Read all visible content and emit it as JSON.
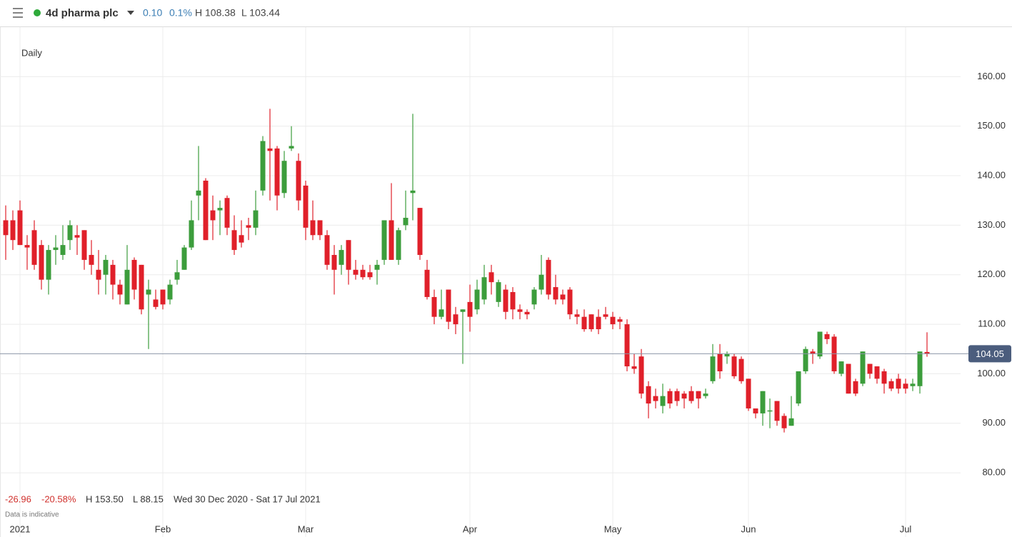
{
  "header": {
    "title": "4d pharma plc",
    "change": "0.10",
    "change_pct": "0.1%",
    "high": "H 108.38",
    "low": "L 103.44"
  },
  "footer": {
    "change": "-26.96",
    "change_pct": "-20.58%",
    "high": "H 153.50",
    "low": "L 88.15",
    "range": "Wed 30 Dec 2020 - Sat 17 Jul 2021",
    "note": "Data is indicative"
  },
  "chart_data": {
    "type": "candlestick",
    "interval": "Daily",
    "categories": [
      null,
      null,
      "2021",
      null,
      null,
      null,
      null,
      null,
      null,
      null,
      null,
      null,
      null,
      null,
      null,
      null,
      null,
      null,
      null,
      null,
      null,
      null,
      "Feb",
      null,
      null,
      null,
      null,
      null,
      null,
      null,
      null,
      null,
      null,
      null,
      null,
      null,
      null,
      null,
      null,
      null,
      null,
      null,
      "Mar",
      null,
      null,
      null,
      null,
      null,
      null,
      null,
      null,
      null,
      null,
      null,
      null,
      null,
      null,
      null,
      null,
      null,
      null,
      null,
      null,
      null,
      null,
      "Apr",
      null,
      null,
      null,
      null,
      null,
      null,
      null,
      null,
      null,
      null,
      null,
      null,
      null,
      null,
      null,
      null,
      null,
      null,
      null,
      "May",
      null,
      null,
      null,
      null,
      null,
      null,
      null,
      null,
      null,
      null,
      null,
      null,
      null,
      null,
      null,
      null,
      null,
      null,
      "Jun",
      null,
      null,
      null,
      null,
      null,
      null,
      null,
      null,
      null,
      null,
      null,
      null,
      null,
      null,
      null,
      null,
      null,
      null,
      null,
      null,
      null,
      "Jul",
      null,
      null,
      null
    ],
    "open": [
      131,
      131,
      133,
      126,
      129,
      126,
      119,
      125,
      124,
      127,
      128,
      129,
      124,
      121,
      120,
      122,
      118,
      114,
      123,
      122,
      116,
      115,
      117,
      115,
      119,
      121,
      125.5,
      136,
      139,
      133,
      133,
      135.5,
      129,
      128,
      130,
      129.5,
      137,
      145.5,
      145.5,
      136.5,
      145.5,
      143,
      138,
      131,
      131,
      128,
      124,
      122,
      127,
      121,
      121,
      120.5,
      121,
      123,
      131,
      123,
      130,
      136.5,
      133.5,
      121,
      115.5,
      111.5,
      117,
      112,
      112.5,
      114.5,
      113,
      115,
      120.5,
      114.5,
      117,
      116.5,
      113,
      112.5,
      114,
      117,
      123,
      117.5,
      116,
      117,
      112,
      111.5,
      112,
      111.5,
      112,
      111.5,
      111,
      110,
      101.5,
      103.5,
      97.5,
      95.5,
      93.5,
      96.5,
      96.5,
      96,
      96.5,
      96.5,
      95.5,
      98.5,
      104,
      103.5,
      103.5,
      103,
      99,
      93,
      92,
      92.4,
      94.5,
      91.5,
      89.5,
      94,
      100.5,
      104.5,
      103.5,
      108,
      107.5,
      100,
      102,
      98.5,
      98,
      102,
      101.5,
      100.5,
      98.5,
      99,
      98,
      97.5,
      97.5,
      104.4
    ],
    "high": [
      134,
      133,
      135,
      128,
      131,
      127,
      126,
      128,
      130,
      131,
      130,
      129,
      127,
      125,
      124,
      123,
      119,
      126,
      123.5,
      122,
      119,
      117,
      117,
      119,
      123,
      126,
      135,
      146,
      139.5,
      136,
      135,
      136,
      132,
      131,
      131.5,
      137,
      148,
      153.5,
      146,
      145,
      150,
      144.5,
      139,
      135,
      131,
      129,
      126,
      126,
      127,
      123,
      122,
      122,
      123,
      131,
      138.5,
      129.5,
      137,
      152.5,
      133.5,
      123,
      117,
      117,
      117,
      113.5,
      113,
      118,
      119,
      122,
      122,
      119,
      118,
      117.5,
      114,
      113,
      117.5,
      124,
      123.5,
      120,
      117,
      117.5,
      113,
      113,
      112,
      113,
      113.5,
      112.5,
      111.5,
      111,
      104,
      105,
      98.5,
      97,
      98,
      97,
      97,
      96.5,
      97.5,
      96.5,
      97,
      106,
      106,
      104.5,
      104,
      103.5,
      99,
      93,
      96.5,
      95,
      94.5,
      92,
      95.5,
      100.5,
      105.5,
      105,
      108.5,
      108.5,
      108,
      102.5,
      102,
      99,
      104.5,
      102,
      101.5,
      101,
      99,
      100,
      99,
      99,
      104.5,
      108.38
    ],
    "low": [
      123,
      125,
      126,
      121,
      121,
      117,
      116,
      122,
      123,
      125,
      124,
      121,
      120,
      116,
      116,
      115,
      114,
      114,
      115,
      112,
      105,
      113,
      113,
      114,
      118,
      121,
      125,
      131,
      127,
      127,
      128,
      128,
      124,
      125.5,
      127,
      128,
      136,
      135,
      133,
      135.5,
      145,
      133,
      127,
      127,
      127,
      121,
      116,
      120,
      118,
      119,
      119,
      119,
      118,
      122,
      123,
      122,
      129,
      131,
      123,
      115,
      110,
      111,
      109,
      108,
      102,
      108.5,
      112,
      114,
      116,
      113.5,
      111,
      111,
      111,
      111,
      113,
      116,
      115,
      114,
      114,
      111,
      110,
      108.5,
      108.5,
      108,
      111,
      109,
      109,
      100.5,
      100,
      95,
      91,
      93,
      92,
      93,
      93.5,
      93,
      94,
      93,
      95,
      98,
      99,
      102,
      99,
      98,
      92.5,
      91,
      89.5,
      89,
      89.5,
      88.15,
      89.5,
      93.5,
      100,
      102,
      103,
      106,
      100,
      99.5,
      96,
      95.5,
      97.5,
      99,
      98,
      96,
      96.5,
      96,
      96,
      96.5,
      96,
      103.44
    ],
    "close": [
      128,
      127,
      126,
      125.5,
      122,
      119,
      125,
      125.5,
      126,
      130,
      127.5,
      123,
      122,
      119,
      123,
      118,
      116,
      121,
      117,
      113,
      117,
      113.5,
      114,
      118,
      120.5,
      125.5,
      131,
      137,
      127,
      131,
      133.5,
      129.5,
      125,
      126.5,
      129.5,
      133,
      147,
      145,
      136,
      143,
      146,
      135,
      129.5,
      128,
      128,
      122,
      121,
      125,
      121,
      120,
      119.5,
      119.5,
      122,
      131,
      123,
      129,
      131.5,
      137,
      124,
      115.5,
      111.5,
      113,
      110.5,
      110,
      113,
      111.5,
      117,
      119.5,
      118.5,
      118.5,
      112.5,
      113,
      112.5,
      112,
      117,
      120,
      116,
      115,
      115,
      112,
      111.5,
      109,
      109,
      109,
      111.5,
      110,
      110.5,
      101.5,
      101,
      96,
      94,
      94.5,
      95.5,
      94,
      94.5,
      95,
      94.5,
      95,
      96,
      103.5,
      100.5,
      104,
      99.5,
      98.5,
      93,
      92,
      96.5,
      92.6,
      90.5,
      89,
      91,
      100.5,
      105,
      104,
      108.5,
      107,
      100.5,
      102.5,
      96,
      96,
      104.5,
      100,
      99,
      98,
      97,
      97,
      97,
      98,
      104.5,
      104.05
    ],
    "up_color": "#3c9d3c",
    "down_color": "#e0202a",
    "last_price": 104.05,
    "ylim": [
      70.5,
      170
    ],
    "yticks": [
      {
        "value": 80,
        "label": "80.00"
      },
      {
        "value": 90,
        "label": "90.00"
      },
      {
        "value": 100,
        "label": "100.00"
      },
      {
        "value": 110,
        "label": "110.00"
      },
      {
        "value": 120,
        "label": "120.00"
      },
      {
        "value": 130,
        "label": "130.00"
      },
      {
        "value": 140,
        "label": "140.00"
      },
      {
        "value": 150,
        "label": "150.00"
      },
      {
        "value": 160,
        "label": "160.00"
      }
    ],
    "grid": true
  }
}
